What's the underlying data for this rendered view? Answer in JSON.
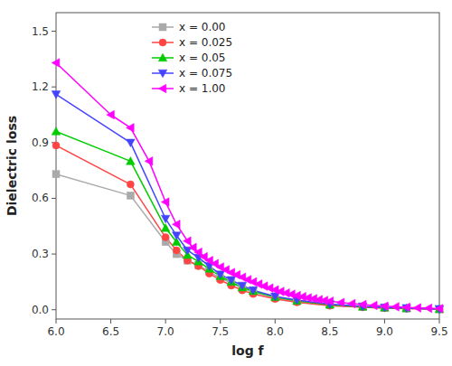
{
  "chart_data": {
    "type": "line",
    "xlabel": "log f",
    "ylabel": "Dielectric loss",
    "xlim": [
      6.0,
      9.5
    ],
    "ylim": [
      -0.05,
      1.6
    ],
    "xticks": [
      {
        "value": 6.0,
        "label": "6.0"
      },
      6.5,
      {
        "value": 7.0,
        "label": "7.0"
      },
      7.5,
      {
        "value": 8.0,
        "label": "8.0"
      },
      8.5,
      {
        "value": 9.0,
        "label": "9.0"
      },
      9.5
    ],
    "yticks": [
      {
        "value": 0.0,
        "label": "0.0"
      },
      0.3,
      0.6,
      0.9,
      1.2,
      1.5
    ],
    "grid": false,
    "legend": "upper left",
    "series": [
      {
        "name": "x = 0.00",
        "color": "#aaaaaa",
        "marker": "square",
        "x": [
          6.0,
          6.68,
          7.0,
          7.1,
          7.2,
          7.3,
          7.4,
          7.5,
          7.6,
          7.7,
          7.8,
          8.0,
          8.2,
          8.5,
          8.8,
          9.0,
          9.2,
          9.5
        ],
        "values": [
          0.73,
          0.615,
          0.365,
          0.3,
          0.265,
          0.24,
          0.205,
          0.17,
          0.145,
          0.115,
          0.095,
          0.065,
          0.045,
          0.025,
          0.015,
          0.01,
          0.007,
          0.003
        ]
      },
      {
        "name": "x = 0.025",
        "color": "#ff4444",
        "marker": "circle",
        "x": [
          6.0,
          6.68,
          7.0,
          7.1,
          7.2,
          7.3,
          7.4,
          7.5,
          7.6,
          7.7,
          7.8,
          8.0,
          8.2,
          8.5,
          8.8,
          9.0,
          9.2,
          9.5
        ],
        "values": [
          0.885,
          0.675,
          0.39,
          0.32,
          0.265,
          0.235,
          0.195,
          0.16,
          0.13,
          0.105,
          0.085,
          0.058,
          0.04,
          0.022,
          0.013,
          0.009,
          0.006,
          0.002
        ]
      },
      {
        "name": "x = 0.05",
        "color": "#00cc00",
        "marker": "triangle-up",
        "x": [
          6.0,
          6.68,
          7.0,
          7.1,
          7.2,
          7.3,
          7.4,
          7.5,
          7.6,
          7.7,
          7.8,
          8.0,
          8.2,
          8.5,
          8.8,
          9.0,
          9.2,
          9.5
        ],
        "values": [
          0.96,
          0.8,
          0.44,
          0.365,
          0.295,
          0.26,
          0.22,
          0.18,
          0.15,
          0.12,
          0.1,
          0.068,
          0.048,
          0.027,
          0.016,
          0.011,
          0.008,
          0.003
        ]
      },
      {
        "name": "x = 0.075",
        "color": "#4444ff",
        "marker": "triangle-down",
        "x": [
          6.0,
          6.68,
          7.0,
          7.1,
          7.2,
          7.3,
          7.4,
          7.5,
          7.6,
          7.7,
          7.8,
          8.0,
          8.2,
          8.5,
          8.8,
          9.0,
          9.2,
          9.5
        ],
        "values": [
          1.16,
          0.9,
          0.49,
          0.4,
          0.32,
          0.28,
          0.235,
          0.19,
          0.16,
          0.13,
          0.105,
          0.072,
          0.052,
          0.03,
          0.018,
          0.012,
          0.009,
          0.004
        ]
      },
      {
        "name": "x = 1.00",
        "color": "#ff00ff",
        "marker": "triangle-left",
        "x": [
          6.0,
          6.5,
          6.68,
          6.85,
          7.0,
          7.1,
          7.2,
          7.25,
          7.3,
          7.35,
          7.4,
          7.45,
          7.5,
          7.55,
          7.6,
          7.65,
          7.7,
          7.75,
          7.8,
          7.85,
          7.9,
          7.95,
          8.0,
          8.05,
          8.1,
          8.15,
          8.2,
          8.25,
          8.3,
          8.35,
          8.4,
          8.45,
          8.5,
          8.6,
          8.7,
          8.8,
          8.9,
          9.0,
          9.1,
          9.2,
          9.3,
          9.4,
          9.5
        ],
        "values": [
          1.33,
          1.05,
          0.98,
          0.8,
          0.58,
          0.46,
          0.37,
          0.335,
          0.31,
          0.285,
          0.265,
          0.248,
          0.23,
          0.215,
          0.2,
          0.188,
          0.175,
          0.162,
          0.15,
          0.138,
          0.127,
          0.117,
          0.107,
          0.098,
          0.09,
          0.083,
          0.076,
          0.07,
          0.064,
          0.059,
          0.054,
          0.05,
          0.046,
          0.039,
          0.033,
          0.028,
          0.023,
          0.019,
          0.016,
          0.013,
          0.01,
          0.008,
          0.006
        ]
      }
    ]
  }
}
